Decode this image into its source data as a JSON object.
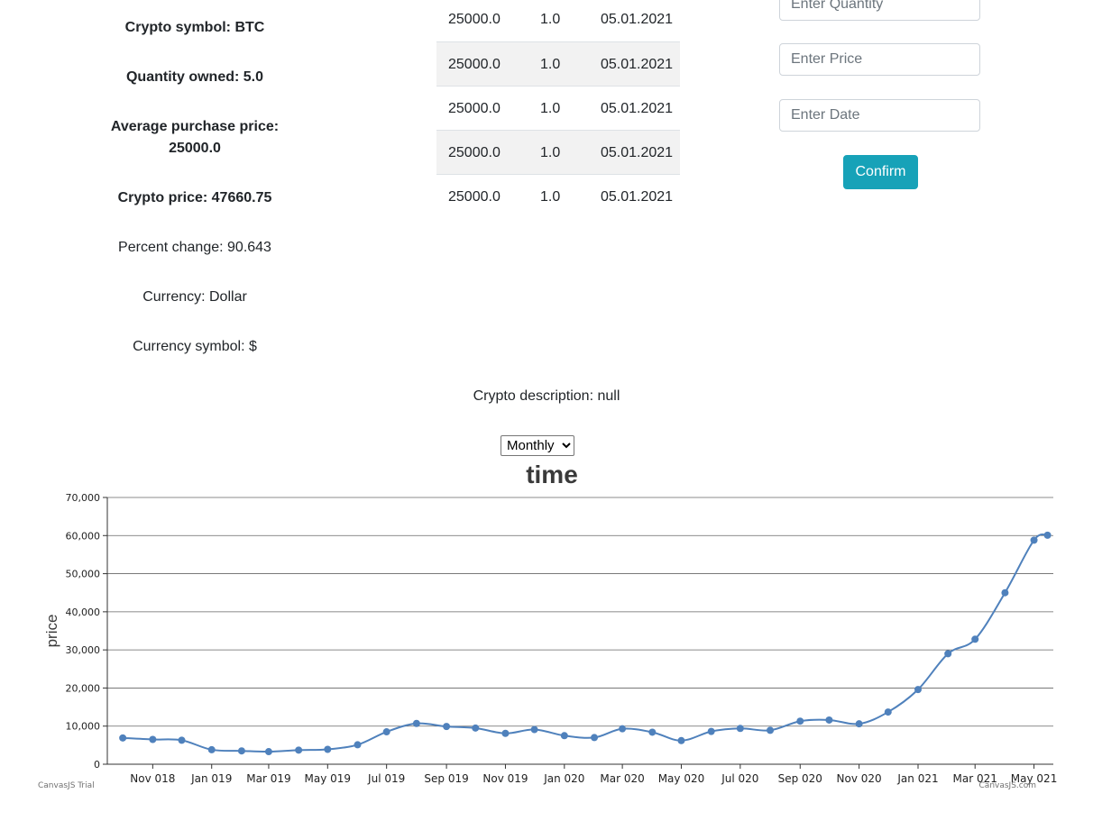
{
  "info": {
    "symbol": "Crypto symbol: BTC",
    "quantity": "Quantity owned: 5.0",
    "avg_line1": "Average purchase price:",
    "avg_line2": "25000.0",
    "price": "Crypto price: 47660.75",
    "percent": "Percent change: 90.643",
    "currency": "Currency: Dollar",
    "currency_symbol": "Currency symbol: $",
    "description": "Crypto description: null"
  },
  "transactions": [
    {
      "price": "25000.0",
      "quantity": "1.0",
      "date": "05.01.2021"
    },
    {
      "price": "25000.0",
      "quantity": "1.0",
      "date": "05.01.2021"
    },
    {
      "price": "25000.0",
      "quantity": "1.0",
      "date": "05.01.2021"
    },
    {
      "price": "25000.0",
      "quantity": "1.0",
      "date": "05.01.2021"
    },
    {
      "price": "25000.0",
      "quantity": "1.0",
      "date": "05.01.2021"
    }
  ],
  "form": {
    "quantity_placeholder": "Enter Quantity",
    "price_placeholder": "Enter Price",
    "date_placeholder": "Enter Date",
    "confirm_label": "Confirm"
  },
  "period_select": {
    "selected": "Monthly"
  },
  "colors": {
    "accent": "#17a2b8",
    "series": "#4f81bc"
  },
  "chart_data": {
    "type": "line",
    "title": "time",
    "xlabel": "",
    "ylabel": "price",
    "ylim": [
      0,
      70000
    ],
    "yticks": [
      "0",
      "10,000",
      "20,000",
      "30,000",
      "40,000",
      "50,000",
      "60,000",
      "70,000"
    ],
    "xticks": [
      "Nov 018",
      "Jan 019",
      "Mar 019",
      "May 019",
      "Jul 019",
      "Sep 019",
      "Nov 019",
      "Jan 020",
      "Mar 020",
      "May 020",
      "Jul 020",
      "Sep 020",
      "Nov 020",
      "Jan 021",
      "Mar 021",
      "May 021"
    ],
    "grid": true,
    "x": [
      "2018-10-01",
      "2018-11-01",
      "2018-12-01",
      "2019-01-01",
      "2019-02-01",
      "2019-03-01",
      "2019-04-01",
      "2019-05-01",
      "2019-06-01",
      "2019-07-01",
      "2019-08-01",
      "2019-09-01",
      "2019-10-01",
      "2019-11-01",
      "2019-12-01",
      "2020-01-01",
      "2020-02-01",
      "2020-03-01",
      "2020-04-01",
      "2020-05-01",
      "2020-06-01",
      "2020-07-01",
      "2020-08-01",
      "2020-09-01",
      "2020-10-01",
      "2020-11-01",
      "2020-12-01",
      "2021-01-01",
      "2021-02-01",
      "2021-03-01",
      "2021-04-01",
      "2021-05-01",
      "2021-05-15"
    ],
    "values": [
      6900,
      6500,
      6300,
      3800,
      3500,
      3300,
      3700,
      3900,
      5100,
      8500,
      10700,
      9900,
      9500,
      8100,
      9100,
      7500,
      7000,
      9300,
      8400,
      6200,
      8600,
      9400,
      8900,
      11300,
      11600,
      10600,
      13700,
      19600,
      29000,
      32800,
      45000,
      58800,
      60100
    ],
    "watermark_left": "CanvasJS Trial",
    "watermark_right": "CanvasJS.com"
  }
}
